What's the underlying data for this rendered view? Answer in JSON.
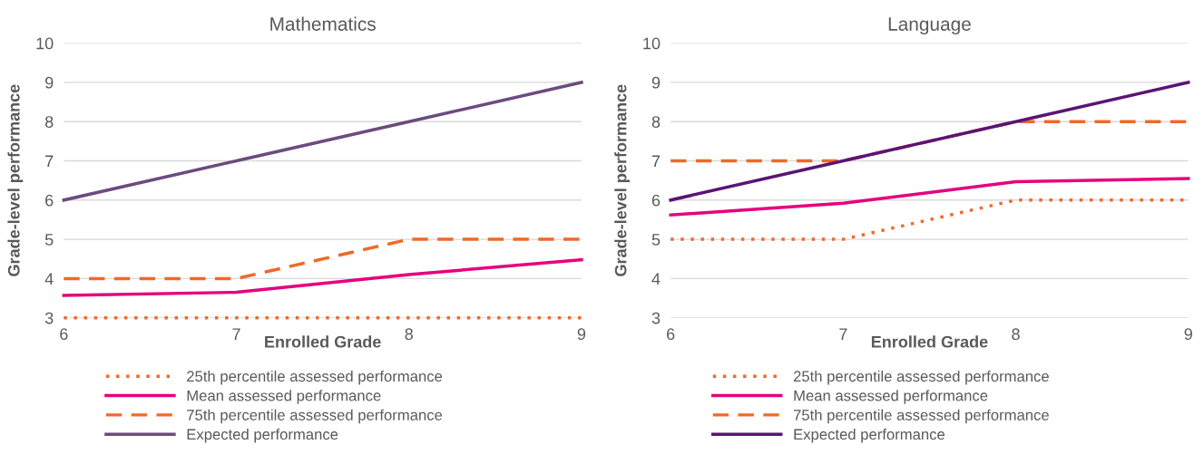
{
  "chart_data": [
    {
      "type": "line",
      "title": "Mathematics",
      "xlabel": "Enrolled Grade",
      "ylabel": "Grade-level performance",
      "x": [
        6,
        7,
        8,
        9
      ],
      "xlim": [
        6,
        9
      ],
      "xticks": [
        6,
        7,
        8,
        9
      ],
      "ylim": [
        3,
        10
      ],
      "yticks": [
        3,
        4,
        5,
        6,
        7,
        8,
        9,
        10
      ],
      "grid": "y",
      "legend": "bottom",
      "marker": "none",
      "series": [
        {
          "name": "25th percentile assessed performance",
          "color": "#ed6a2a",
          "line_style": "dotted",
          "values": [
            3,
            3,
            3,
            3
          ]
        },
        {
          "name": "Mean assessed performance",
          "color": "#e6007e",
          "line_style": "solid",
          "values": [
            3.57,
            3.65,
            4.1,
            4.48
          ]
        },
        {
          "name": "75th percentile assessed performance",
          "color": "#ed6a2a",
          "line_style": "dashed",
          "values": [
            4,
            4,
            5,
            5
          ]
        },
        {
          "name": "Expected performance",
          "color": "#6b4c7e",
          "line_style": "solid",
          "values": [
            6,
            7,
            8,
            9
          ]
        }
      ]
    },
    {
      "type": "line",
      "title": "Language",
      "xlabel": "Enrolled Grade",
      "ylabel": "Grade-level performance",
      "x": [
        6,
        7,
        8,
        9
      ],
      "xlim": [
        6,
        9
      ],
      "xticks": [
        6,
        7,
        8,
        9
      ],
      "ylim": [
        3,
        10
      ],
      "yticks": [
        3,
        4,
        5,
        6,
        7,
        8,
        9,
        10
      ],
      "grid": "y",
      "legend": "bottom",
      "marker": "none",
      "series": [
        {
          "name": "25th percentile assessed performance",
          "color": "#ed6a2a",
          "line_style": "dotted",
          "values": [
            5,
            5,
            6,
            6
          ]
        },
        {
          "name": "Mean assessed performance",
          "color": "#e6007e",
          "line_style": "solid",
          "values": [
            5.62,
            5.92,
            6.47,
            6.55
          ]
        },
        {
          "name": "75th percentile assessed performance",
          "color": "#ed6a2a",
          "line_style": "dashed",
          "values": [
            7,
            7,
            8,
            8
          ]
        },
        {
          "name": "Expected performance",
          "color": "#5b1474",
          "line_style": "solid",
          "values": [
            6,
            7,
            8,
            9
          ]
        }
      ]
    }
  ]
}
